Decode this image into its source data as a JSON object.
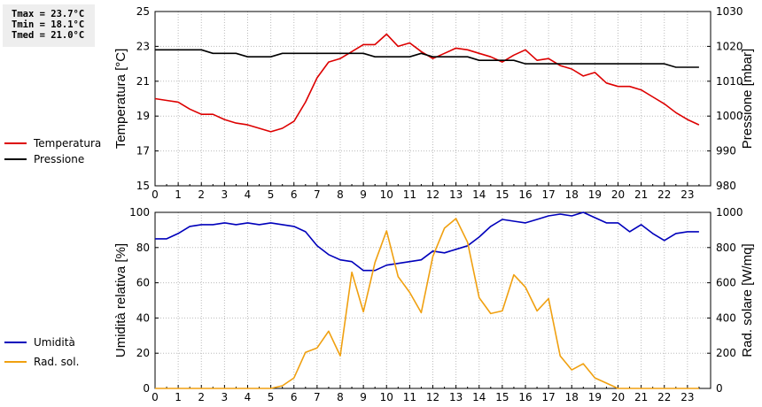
{
  "stats": {
    "tmax": "Tmax = 23.7°C",
    "tmin": "Tmin = 18.1°C",
    "tmed": "Tmed = 21.0°C"
  },
  "colors": {
    "temperatura": "#dd0000",
    "pressione": "#000000",
    "umidita": "#0000bb",
    "rad_sol": "#f0a010"
  },
  "chart_data": [
    {
      "type": "line",
      "x": [
        0,
        0.5,
        1,
        1.5,
        2,
        2.5,
        3,
        3.5,
        4,
        4.5,
        5,
        5.5,
        6,
        6.5,
        7,
        7.5,
        8,
        8.5,
        9,
        9.5,
        10,
        10.5,
        11,
        11.5,
        12,
        12.5,
        13,
        13.5,
        14,
        14.5,
        15,
        15.5,
        16,
        16.5,
        17,
        17.5,
        18,
        18.5,
        19,
        19.5,
        20,
        20.5,
        21,
        21.5,
        22,
        22.5,
        23,
        23.5
      ],
      "xlim": [
        0,
        24
      ],
      "xticks": [
        "0",
        "1",
        "2",
        "3",
        "4",
        "5",
        "6",
        "7",
        "8",
        "9",
        "10",
        "11",
        "12",
        "13",
        "14",
        "15",
        "16",
        "17",
        "18",
        "19",
        "20",
        "21",
        "22",
        "23"
      ],
      "ylabel": "Temperatura [°C]",
      "ylim": [
        15,
        25
      ],
      "yticks": [
        "15",
        "17",
        "19",
        "21",
        "23",
        "25"
      ],
      "y2label": "Pressione [mbar]",
      "y2lim": [
        980,
        1030
      ],
      "y2ticks": [
        "980",
        "990",
        "1000",
        "1010",
        "1020",
        "1030"
      ],
      "grid": true,
      "legend_position": "left",
      "series": [
        {
          "name": "Temperatura",
          "axis": "left",
          "values": [
            20.0,
            19.9,
            19.8,
            19.4,
            19.1,
            19.1,
            18.8,
            18.6,
            18.5,
            18.3,
            18.1,
            18.3,
            18.7,
            19.8,
            21.2,
            22.1,
            22.3,
            22.7,
            23.1,
            23.1,
            23.7,
            23.0,
            23.2,
            22.7,
            22.3,
            22.6,
            22.9,
            22.8,
            22.6,
            22.4,
            22.1,
            22.5,
            22.8,
            22.2,
            22.3,
            21.9,
            21.7,
            21.3,
            21.5,
            20.9,
            20.7,
            20.7,
            20.5,
            20.1,
            19.7,
            19.2,
            18.8,
            18.5
          ]
        },
        {
          "name": "Pressione",
          "axis": "right",
          "values": [
            1019,
            1019,
            1019,
            1019,
            1019,
            1018,
            1018,
            1018,
            1017,
            1017,
            1017,
            1018,
            1018,
            1018,
            1018,
            1018,
            1018,
            1018,
            1018,
            1017,
            1017,
            1017,
            1017,
            1018,
            1017,
            1017,
            1017,
            1017,
            1016,
            1016,
            1016,
            1016,
            1015,
            1015,
            1015,
            1015,
            1015,
            1015,
            1015,
            1015,
            1015,
            1015,
            1015,
            1015,
            1015,
            1014,
            1014,
            1014
          ]
        }
      ]
    },
    {
      "type": "line",
      "x": [
        0,
        0.5,
        1,
        1.5,
        2,
        2.5,
        3,
        3.5,
        4,
        4.5,
        5,
        5.5,
        6,
        6.5,
        7,
        7.5,
        8,
        8.5,
        9,
        9.5,
        10,
        10.5,
        11,
        11.5,
        12,
        12.5,
        13,
        13.5,
        14,
        14.5,
        15,
        15.5,
        16,
        16.5,
        17,
        17.5,
        18,
        18.5,
        19,
        19.5,
        20,
        20.5,
        21,
        21.5,
        22,
        22.5,
        23,
        23.5
      ],
      "xlim": [
        0,
        24
      ],
      "xticks": [
        "0",
        "1",
        "2",
        "3",
        "4",
        "5",
        "6",
        "7",
        "8",
        "9",
        "10",
        "11",
        "12",
        "13",
        "14",
        "15",
        "16",
        "17",
        "18",
        "19",
        "20",
        "21",
        "22",
        "23"
      ],
      "ylabel": "Umidità relativa [%]",
      "ylim": [
        0,
        100
      ],
      "yticks": [
        "0",
        "20",
        "40",
        "60",
        "80",
        "100"
      ],
      "y2label": "Rad. solare [W/mq]",
      "y2lim": [
        0,
        1000
      ],
      "y2ticks": [
        "0",
        "200",
        "400",
        "600",
        "800",
        "1000"
      ],
      "grid": true,
      "legend_position": "left",
      "series": [
        {
          "name": "Umidità",
          "axis": "left",
          "values": [
            85,
            85,
            88,
            92,
            93,
            93,
            94,
            93,
            94,
            93,
            94,
            93,
            92,
            89,
            81,
            76,
            73,
            72,
            67,
            67,
            70,
            71,
            72,
            73,
            78,
            77,
            79,
            81,
            86,
            92,
            96,
            95,
            94,
            96,
            98,
            99,
            98,
            100,
            97,
            94,
            94,
            89,
            93,
            88,
            84,
            88,
            89,
            89
          ]
        },
        {
          "name": "Rad. sol.",
          "axis": "right",
          "values": [
            0,
            0,
            0,
            0,
            0,
            0,
            0,
            0,
            0,
            0,
            0,
            15,
            60,
            205,
            230,
            325,
            185,
            660,
            435,
            715,
            895,
            635,
            545,
            430,
            750,
            910,
            965,
            830,
            515,
            425,
            440,
            645,
            575,
            440,
            510,
            185,
            105,
            140,
            60,
            30,
            0,
            0,
            0,
            0,
            0,
            0,
            0,
            0
          ]
        }
      ]
    }
  ]
}
